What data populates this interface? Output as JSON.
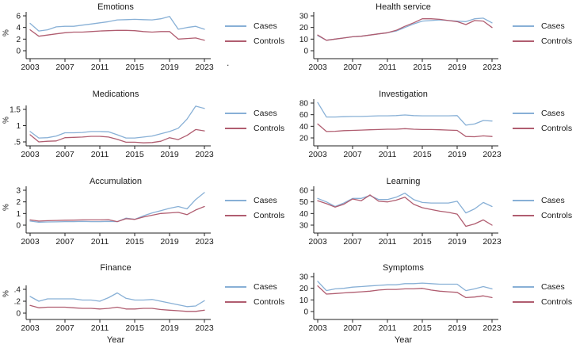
{
  "figure": {
    "ylabel_left": "%",
    "xlabel": "Year",
    "stray_mark": ".",
    "legend": {
      "cases": "Cases",
      "controls": "Controls"
    },
    "colors": {
      "cases": "#88b0d6",
      "controls": "#b05d70",
      "axis": "#222222"
    },
    "years": [
      2003,
      2004,
      2005,
      2006,
      2007,
      2008,
      2009,
      2010,
      2011,
      2012,
      2013,
      2014,
      2015,
      2016,
      2017,
      2018,
      2019,
      2020,
      2021,
      2022,
      2023
    ]
  },
  "chart_data": [
    {
      "type": "line",
      "title": "Emotions",
      "ylabel": "%",
      "xticks": [
        2003,
        2007,
        2011,
        2015,
        2019,
        2023
      ],
      "ytick_values": [
        0,
        2,
        4,
        6
      ],
      "ytick_labels": [
        "0",
        "2",
        "4",
        "6"
      ],
      "ylim": [
        0,
        6.6
      ],
      "series": [
        {
          "name": "Cases",
          "key": "cases",
          "values": [
            4.7,
            3.4,
            3.6,
            4.1,
            4.2,
            4.2,
            4.4,
            4.6,
            4.8,
            5.0,
            5.3,
            5.35,
            5.4,
            5.35,
            5.3,
            5.5,
            5.9,
            3.7,
            4.0,
            4.2,
            3.7
          ]
        },
        {
          "name": "Controls",
          "key": "controls",
          "values": [
            3.6,
            2.5,
            2.7,
            2.9,
            3.1,
            3.2,
            3.2,
            3.3,
            3.4,
            3.45,
            3.5,
            3.5,
            3.45,
            3.3,
            3.2,
            3.3,
            3.3,
            2.0,
            2.1,
            2.2,
            1.8
          ]
        }
      ]
    },
    {
      "type": "line",
      "title": "Health service",
      "ylabel": "",
      "xticks": [
        2003,
        2007,
        2011,
        2015,
        2019,
        2023
      ],
      "ytick_values": [
        0,
        10,
        20,
        30
      ],
      "ytick_labels": [
        "0",
        "10",
        "20",
        "30"
      ],
      "ylim": [
        0,
        33
      ],
      "series": [
        {
          "name": "Cases",
          "key": "cases",
          "values": [
            13,
            9,
            10,
            11,
            12,
            12.5,
            13.5,
            14.5,
            15.5,
            17,
            20,
            23,
            25.5,
            26,
            26.5,
            26,
            25.5,
            25,
            27.5,
            28,
            24
          ]
        },
        {
          "name": "Controls",
          "key": "controls",
          "values": [
            13.5,
            9,
            10,
            11,
            12,
            12.5,
            13.5,
            14.5,
            15.5,
            17.5,
            21,
            24,
            27.5,
            27.5,
            27,
            26,
            25,
            22.5,
            26,
            25.5,
            20
          ]
        }
      ]
    },
    {
      "type": "line",
      "title": "Medications",
      "ylabel": "%",
      "xticks": [
        2003,
        2007,
        2011,
        2015,
        2019,
        2023
      ],
      "ytick_values": [
        0.5,
        1,
        1.5
      ],
      "ytick_labels": [
        ".5",
        "1",
        "1.5"
      ],
      "ylim": [
        0.4,
        1.7
      ],
      "series": [
        {
          "name": "Cases",
          "key": "cases",
          "values": [
            0.82,
            0.62,
            0.63,
            0.68,
            0.78,
            0.78,
            0.79,
            0.82,
            0.82,
            0.81,
            0.72,
            0.62,
            0.62,
            0.65,
            0.68,
            0.75,
            0.82,
            0.92,
            1.2,
            1.6,
            1.53
          ]
        },
        {
          "name": "Controls",
          "key": "controls",
          "values": [
            0.72,
            0.5,
            0.52,
            0.53,
            0.63,
            0.64,
            0.65,
            0.67,
            0.67,
            0.65,
            0.58,
            0.49,
            0.49,
            0.47,
            0.48,
            0.52,
            0.63,
            0.57,
            0.7,
            0.88,
            0.84
          ]
        }
      ]
    },
    {
      "type": "line",
      "title": "Investigation",
      "ylabel": "",
      "xticks": [
        2003,
        2007,
        2011,
        2015,
        2019,
        2023
      ],
      "ytick_values": [
        20,
        40,
        60,
        80
      ],
      "ytick_labels": [
        "20",
        "40",
        "60",
        "80"
      ],
      "ylim": [
        15,
        85
      ],
      "series": [
        {
          "name": "Cases",
          "key": "cases",
          "values": [
            81,
            56,
            56,
            56.5,
            57,
            57,
            57.5,
            58,
            58,
            58.5,
            59.5,
            58.5,
            58,
            58,
            58,
            58,
            58.5,
            42,
            44,
            50,
            49
          ]
        },
        {
          "name": "Controls",
          "key": "controls",
          "values": [
            44,
            31,
            31.5,
            32.5,
            33,
            33.5,
            34,
            34.5,
            35,
            35,
            36,
            35,
            34.5,
            34.5,
            34,
            33.5,
            33,
            22.5,
            22,
            23.5,
            22.5
          ]
        }
      ]
    },
    {
      "type": "line",
      "title": "Accumulation",
      "ylabel": "%",
      "xticks": [
        2003,
        2007,
        2011,
        2015,
        2019,
        2023
      ],
      "ytick_values": [
        0,
        1,
        2,
        3
      ],
      "ytick_labels": [
        "0",
        "1",
        "2",
        "3"
      ],
      "ylim": [
        0,
        3.2
      ],
      "series": [
        {
          "name": "Cases",
          "key": "cases",
          "values": [
            0.35,
            0.25,
            0.27,
            0.28,
            0.3,
            0.3,
            0.32,
            0.3,
            0.3,
            0.32,
            0.3,
            0.6,
            0.5,
            0.8,
            1.05,
            1.25,
            1.45,
            1.6,
            1.4,
            2.2,
            2.8
          ]
        },
        {
          "name": "Controls",
          "key": "controls",
          "values": [
            0.45,
            0.35,
            0.38,
            0.4,
            0.42,
            0.43,
            0.45,
            0.45,
            0.45,
            0.47,
            0.3,
            0.55,
            0.5,
            0.7,
            0.85,
            1.0,
            1.05,
            1.1,
            0.9,
            1.3,
            1.6
          ]
        }
      ]
    },
    {
      "type": "line",
      "title": "Learning",
      "ylabel": "",
      "xticks": [
        2003,
        2007,
        2011,
        2015,
        2019,
        2023
      ],
      "ytick_values": [
        30,
        40,
        50,
        60
      ],
      "ytick_labels": [
        "30",
        "40",
        "50",
        "60"
      ],
      "ylim": [
        27,
        62
      ],
      "series": [
        {
          "name": "Cases",
          "key": "cases",
          "values": [
            53,
            50,
            46,
            49,
            53,
            53,
            55.5,
            52,
            52,
            54,
            57.5,
            52,
            49.5,
            49,
            49,
            49,
            50.5,
            40.5,
            44,
            49.5,
            46
          ]
        },
        {
          "name": "Controls",
          "key": "controls",
          "values": [
            51,
            48.5,
            45.5,
            48,
            52.5,
            51,
            56,
            50.5,
            50,
            51.5,
            54,
            48,
            45,
            43.5,
            42,
            41,
            39.5,
            29,
            31,
            34.5,
            30
          ]
        }
      ]
    },
    {
      "type": "line",
      "title": "Finance",
      "ylabel": "%",
      "xlabel": "Year",
      "xticks": [
        2003,
        2007,
        2011,
        2015,
        2019,
        2023
      ],
      "ytick_values": [
        0,
        0.2,
        0.4
      ],
      "ytick_labels": [
        "0",
        ".2",
        ".4"
      ],
      "ylim": [
        0,
        0.44
      ],
      "series": [
        {
          "name": "Cases",
          "key": "cases",
          "values": [
            0.28,
            0.2,
            0.24,
            0.24,
            0.24,
            0.24,
            0.22,
            0.22,
            0.2,
            0.26,
            0.34,
            0.25,
            0.22,
            0.22,
            0.23,
            0.2,
            0.17,
            0.14,
            0.11,
            0.12,
            0.21
          ]
        },
        {
          "name": "Controls",
          "key": "controls",
          "values": [
            0.13,
            0.09,
            0.1,
            0.1,
            0.1,
            0.09,
            0.08,
            0.08,
            0.07,
            0.08,
            0.1,
            0.07,
            0.07,
            0.08,
            0.08,
            0.06,
            0.05,
            0.04,
            0.03,
            0.03,
            0.05
          ]
        }
      ]
    },
    {
      "type": "line",
      "title": "Symptoms",
      "ylabel": "",
      "xlabel": "Year",
      "xticks": [
        2003,
        2007,
        2011,
        2015,
        2019,
        2023
      ],
      "ytick_values": [
        0,
        10,
        20,
        30
      ],
      "ytick_labels": [
        "0",
        "10",
        "20",
        "30"
      ],
      "ylim": [
        0,
        32
      ],
      "series": [
        {
          "name": "Cases",
          "key": "cases",
          "values": [
            26,
            18,
            19.5,
            20,
            21,
            21.5,
            22,
            22.5,
            23,
            23,
            24,
            24,
            24.5,
            24,
            23.5,
            23.5,
            23.5,
            18,
            19.5,
            21.5,
            19.5
          ]
        },
        {
          "name": "Controls",
          "key": "controls",
          "values": [
            22,
            15,
            15.5,
            16,
            16.5,
            17,
            17.5,
            18.5,
            19,
            19,
            19.5,
            19.5,
            20,
            18.5,
            17.5,
            17,
            16.5,
            12,
            12.5,
            13.5,
            12
          ]
        }
      ]
    }
  ]
}
